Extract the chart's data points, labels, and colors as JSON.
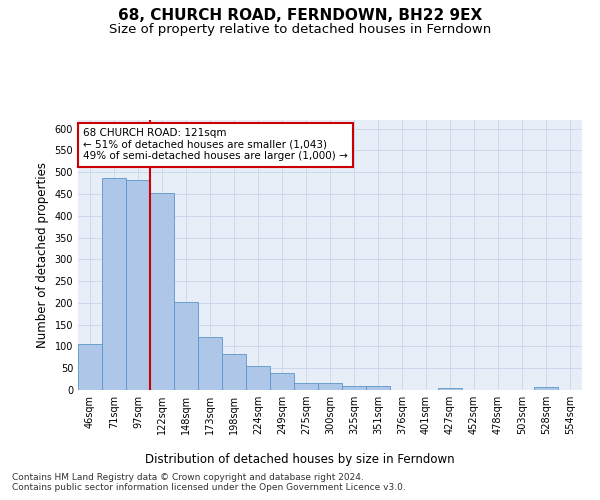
{
  "title": "68, CHURCH ROAD, FERNDOWN, BH22 9EX",
  "subtitle": "Size of property relative to detached houses in Ferndown",
  "xlabel": "Distribution of detached houses by size in Ferndown",
  "ylabel": "Number of detached properties",
  "categories": [
    "46sqm",
    "71sqm",
    "97sqm",
    "122sqm",
    "148sqm",
    "173sqm",
    "198sqm",
    "224sqm",
    "249sqm",
    "275sqm",
    "300sqm",
    "325sqm",
    "351sqm",
    "376sqm",
    "401sqm",
    "427sqm",
    "452sqm",
    "478sqm",
    "503sqm",
    "528sqm",
    "554sqm"
  ],
  "values": [
    105,
    487,
    482,
    452,
    202,
    122,
    82,
    56,
    38,
    15,
    15,
    9,
    9,
    0,
    0,
    5,
    0,
    0,
    0,
    7,
    0
  ],
  "bar_color": "#aec6e8",
  "bar_edge_color": "#5a96c8",
  "vline_x": 2.5,
  "annotation_text": "68 CHURCH ROAD: 121sqm\n← 51% of detached houses are smaller (1,043)\n49% of semi-detached houses are larger (1,000) →",
  "annotation_box_color": "#ffffff",
  "annotation_box_edge_color": "#cc0000",
  "vline_color": "#cc0000",
  "ylim": [
    0,
    620
  ],
  "yticks": [
    0,
    50,
    100,
    150,
    200,
    250,
    300,
    350,
    400,
    450,
    500,
    550,
    600
  ],
  "background_color": "#e8eef8",
  "footer_text": "Contains HM Land Registry data © Crown copyright and database right 2024.\nContains public sector information licensed under the Open Government Licence v3.0.",
  "title_fontsize": 11,
  "subtitle_fontsize": 9.5,
  "axis_label_fontsize": 8.5,
  "tick_fontsize": 7,
  "footer_fontsize": 6.5,
  "annotation_fontsize": 7.5
}
